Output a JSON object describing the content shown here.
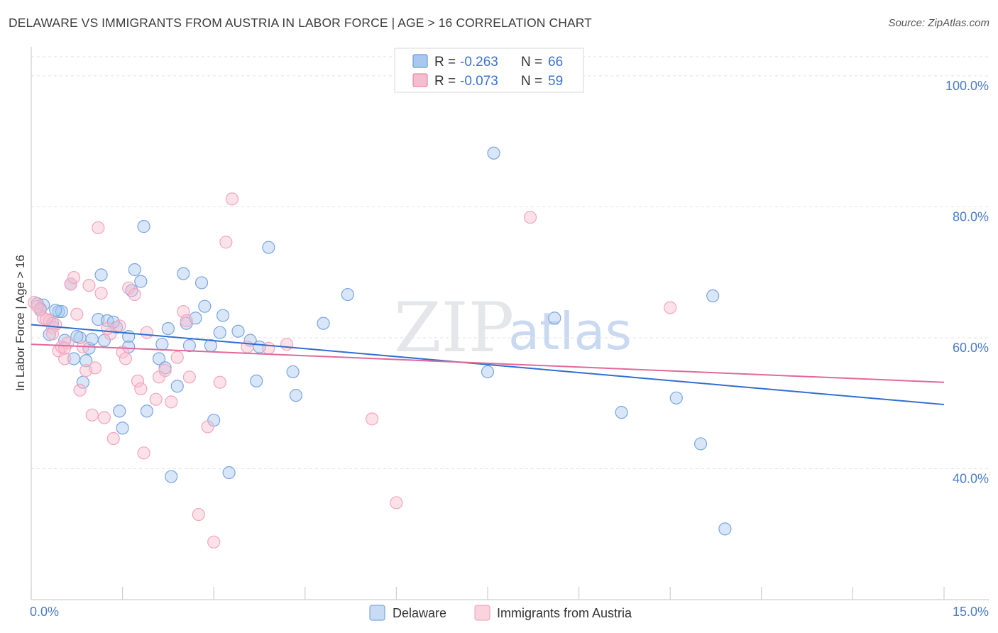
{
  "title": "DELAWARE VS IMMIGRANTS FROM AUSTRIA IN LABOR FORCE | AGE > 16 CORRELATION CHART",
  "source": "Source: ZipAtlas.com",
  "watermark": {
    "zip": "ZIP",
    "atlas": "atlas"
  },
  "legend": {
    "r_label": "R =",
    "n_label": "N =",
    "entries": [
      {
        "r": "-0.263",
        "n": "66",
        "color": "#a8c8f0",
        "border": "#6c9bd8"
      },
      {
        "r": "-0.073",
        "n": "59",
        "color": "#f7bccd",
        "border": "#e58aa6"
      }
    ]
  },
  "chart_data": {
    "type": "scatter",
    "title": "DELAWARE VS IMMIGRANTS FROM AUSTRIA IN LABOR FORCE | AGE > 16 CORRELATION CHART",
    "xlabel": "",
    "ylabel": "In Labor Force | Age > 16",
    "xlim": [
      0,
      15
    ],
    "ylim": [
      20,
      104
    ],
    "x_tick_labels": [
      "0.0%",
      "15.0%"
    ],
    "y_ticks": [
      40,
      60,
      80,
      100
    ],
    "y_tick_labels": [
      "40.0%",
      "60.0%",
      "80.0%",
      "100.0%"
    ],
    "grid": true,
    "series": [
      {
        "name": "Delaware",
        "color": "#7aa6e0",
        "trend": {
          "x": [
            0,
            15
          ],
          "y": [
            62.0,
            49.8
          ],
          "color": "#2f6fd0"
        },
        "points": [
          [
            0.1,
            65.2
          ],
          [
            0.2,
            65.0
          ],
          [
            0.3,
            60.5
          ],
          [
            0.35,
            62.2
          ],
          [
            0.45,
            64.0
          ],
          [
            0.5,
            64.0
          ],
          [
            0.55,
            59.6
          ],
          [
            0.65,
            68.2
          ],
          [
            0.7,
            56.8
          ],
          [
            0.8,
            60.0
          ],
          [
            0.85,
            53.2
          ],
          [
            0.9,
            56.5
          ],
          [
            0.95,
            58.4
          ],
          [
            1.0,
            59.8
          ],
          [
            1.1,
            62.8
          ],
          [
            1.15,
            69.6
          ],
          [
            1.2,
            59.6
          ],
          [
            1.25,
            62.6
          ],
          [
            1.4,
            61.6
          ],
          [
            1.45,
            48.8
          ],
          [
            1.5,
            46.2
          ],
          [
            1.6,
            60.2
          ],
          [
            1.6,
            58.6
          ],
          [
            1.65,
            67.2
          ],
          [
            1.7,
            70.4
          ],
          [
            1.8,
            68.6
          ],
          [
            1.85,
            77.0
          ],
          [
            1.9,
            48.8
          ],
          [
            2.1,
            56.8
          ],
          [
            2.15,
            59.0
          ],
          [
            2.2,
            55.4
          ],
          [
            2.25,
            61.4
          ],
          [
            2.3,
            38.8
          ],
          [
            2.4,
            52.6
          ],
          [
            2.5,
            69.8
          ],
          [
            2.55,
            62.2
          ],
          [
            2.6,
            58.8
          ],
          [
            2.7,
            63.0
          ],
          [
            2.8,
            68.4
          ],
          [
            2.85,
            64.8
          ],
          [
            2.95,
            58.8
          ],
          [
            3.0,
            47.4
          ],
          [
            3.1,
            60.8
          ],
          [
            3.15,
            63.4
          ],
          [
            3.25,
            39.4
          ],
          [
            3.4,
            61.0
          ],
          [
            3.6,
            59.6
          ],
          [
            3.7,
            53.4
          ],
          [
            3.75,
            58.6
          ],
          [
            3.9,
            73.8
          ],
          [
            4.3,
            54.8
          ],
          [
            4.35,
            51.2
          ],
          [
            4.8,
            62.2
          ],
          [
            5.2,
            66.6
          ],
          [
            7.5,
            54.8
          ],
          [
            7.6,
            88.2
          ],
          [
            8.6,
            63.0
          ],
          [
            9.7,
            48.6
          ],
          [
            10.6,
            50.8
          ],
          [
            11.0,
            43.8
          ],
          [
            11.2,
            66.4
          ],
          [
            11.4,
            30.8
          ],
          [
            0.15,
            64.4
          ],
          [
            0.4,
            64.2
          ],
          [
            0.75,
            60.2
          ],
          [
            1.35,
            62.4
          ]
        ]
      },
      {
        "name": "Immigrants from Austria",
        "color": "#f3a6bf",
        "trend": {
          "x": [
            0,
            15
          ],
          "y": [
            59.0,
            53.2
          ],
          "color": "#e2689a"
        },
        "points": [
          [
            0.05,
            65.4
          ],
          [
            0.15,
            64.2
          ],
          [
            0.2,
            63.0
          ],
          [
            0.3,
            62.6
          ],
          [
            0.35,
            61.6
          ],
          [
            0.4,
            62.0
          ],
          [
            0.45,
            58.0
          ],
          [
            0.5,
            58.6
          ],
          [
            0.55,
            56.8
          ],
          [
            0.6,
            59.2
          ],
          [
            0.65,
            68.2
          ],
          [
            0.7,
            69.2
          ],
          [
            0.75,
            63.6
          ],
          [
            0.8,
            52.0
          ],
          [
            0.85,
            58.6
          ],
          [
            0.9,
            55.0
          ],
          [
            0.95,
            68.0
          ],
          [
            1.0,
            48.2
          ],
          [
            1.05,
            55.4
          ],
          [
            1.1,
            76.8
          ],
          [
            1.15,
            66.8
          ],
          [
            1.2,
            47.8
          ],
          [
            1.3,
            60.6
          ],
          [
            1.35,
            44.6
          ],
          [
            1.45,
            61.8
          ],
          [
            1.5,
            57.8
          ],
          [
            1.55,
            56.8
          ],
          [
            1.6,
            67.6
          ],
          [
            1.7,
            66.6
          ],
          [
            1.75,
            53.4
          ],
          [
            1.8,
            52.2
          ],
          [
            1.85,
            42.4
          ],
          [
            1.9,
            60.8
          ],
          [
            2.05,
            50.6
          ],
          [
            2.1,
            54.0
          ],
          [
            2.2,
            55.0
          ],
          [
            2.3,
            50.2
          ],
          [
            2.4,
            57.0
          ],
          [
            2.5,
            64.0
          ],
          [
            2.6,
            54.0
          ],
          [
            2.75,
            33.0
          ],
          [
            2.9,
            46.4
          ],
          [
            3.0,
            28.8
          ],
          [
            3.1,
            53.2
          ],
          [
            3.2,
            74.6
          ],
          [
            3.3,
            81.2
          ],
          [
            3.55,
            58.6
          ],
          [
            3.9,
            58.4
          ],
          [
            4.2,
            59.0
          ],
          [
            5.6,
            47.6
          ],
          [
            6.0,
            34.8
          ],
          [
            8.2,
            78.4
          ],
          [
            10.5,
            64.6
          ],
          [
            0.25,
            62.8
          ],
          [
            0.55,
            58.4
          ],
          [
            1.25,
            61.4
          ],
          [
            2.55,
            62.6
          ],
          [
            0.1,
            64.8
          ],
          [
            0.35,
            60.6
          ]
        ]
      }
    ]
  }
}
